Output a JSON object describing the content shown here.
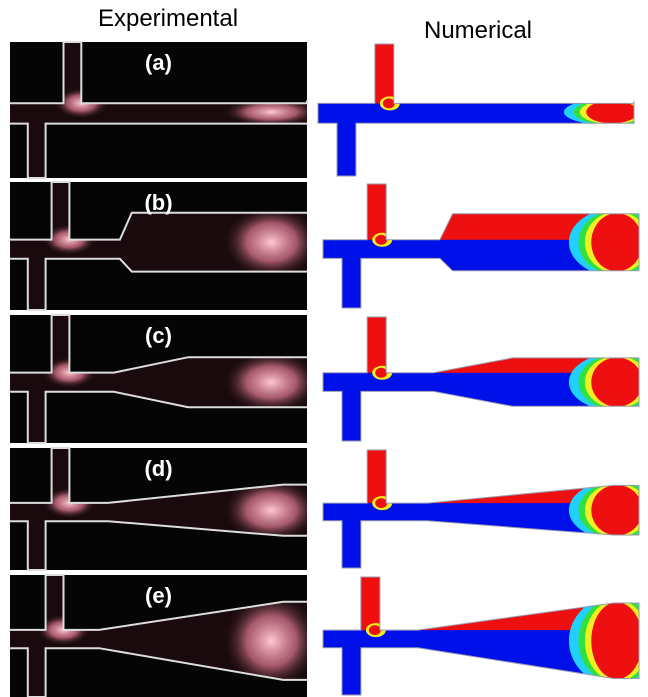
{
  "headers": {
    "experimental": "Experimental",
    "numerical": "Numerical"
  },
  "panels": [
    {
      "label": "(a)"
    },
    {
      "label": "(b)"
    },
    {
      "label": "(c)"
    },
    {
      "label": "(d)"
    },
    {
      "label": "(e)"
    }
  ]
}
